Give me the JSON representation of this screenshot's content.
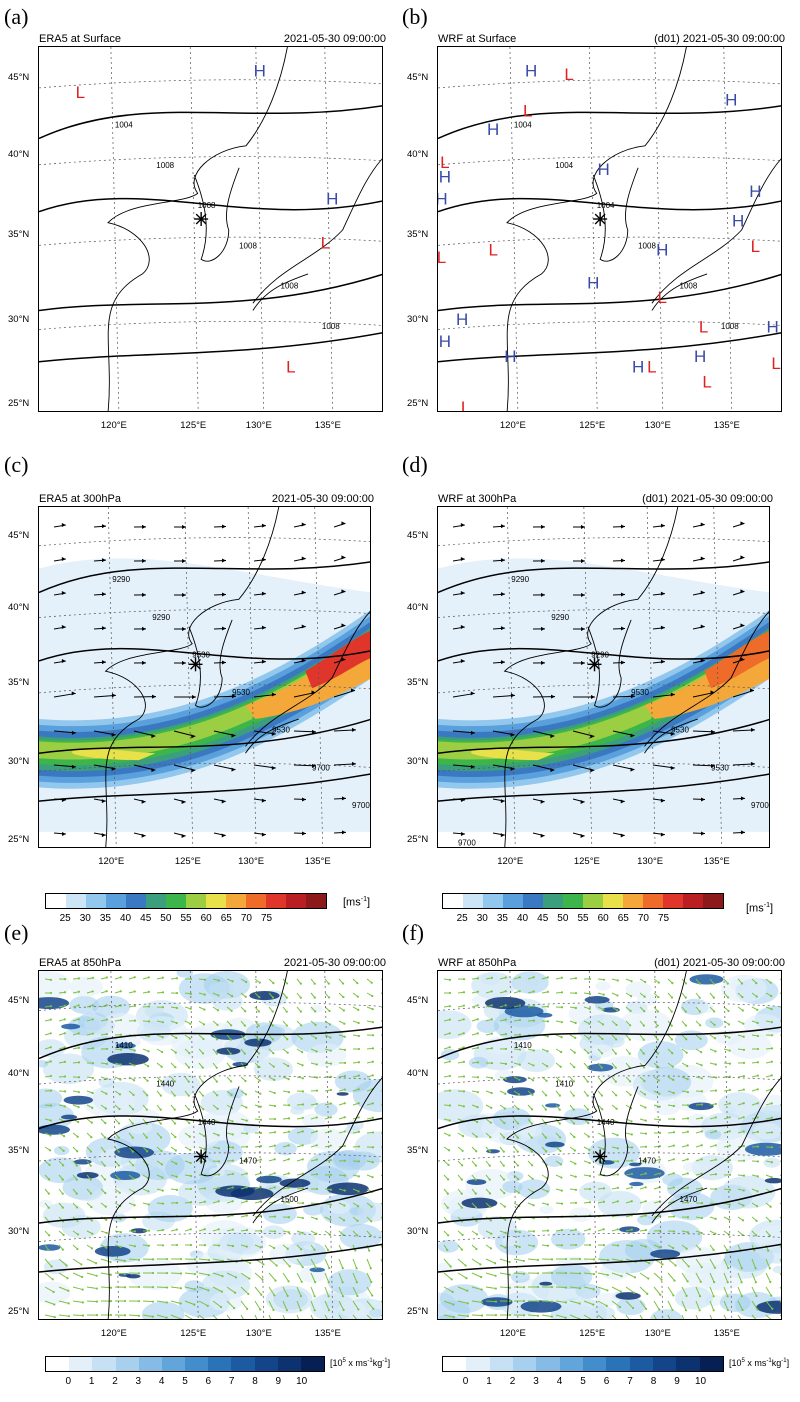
{
  "panels": [
    {
      "label": "(a)",
      "left_title": "ERA5 at Surface",
      "right_title": "2021-05-30 09:00:00",
      "contour_labels": [
        "1004",
        "1008",
        "1008",
        "1008",
        "1008",
        "1008"
      ],
      "H": [
        [
          "H",
          0.64,
          0.08
        ],
        [
          "H",
          0.85,
          0.43
        ]
      ],
      "L": [
        [
          "L",
          0.12,
          0.14
        ],
        [
          "L",
          0.83,
          0.55
        ],
        [
          "L",
          0.73,
          0.89
        ]
      ]
    },
    {
      "label": "(b)",
      "left_title": "WRF at Surface",
      "right_title": "(d01) 2021-05-30 09:00:00",
      "contour_labels": [
        "1004",
        "1004",
        "1004",
        "1008",
        "1008",
        "1008"
      ],
      "H": [
        [
          "H",
          0.27,
          0.08
        ],
        [
          "H",
          0.85,
          0.16
        ],
        [
          "H",
          0.16,
          0.24
        ],
        [
          "H",
          0.48,
          0.35
        ],
        [
          "H",
          0.02,
          0.37
        ],
        [
          "H",
          0.01,
          0.43
        ],
        [
          "H",
          0.92,
          0.41
        ],
        [
          "H",
          0.87,
          0.49
        ],
        [
          "H",
          0.65,
          0.57
        ],
        [
          "H",
          0.45,
          0.66
        ],
        [
          "H",
          0.07,
          0.76
        ],
        [
          "H",
          0.02,
          0.82
        ],
        [
          "H",
          0.21,
          0.86
        ],
        [
          "H",
          0.58,
          0.89
        ],
        [
          "H",
          0.76,
          0.86
        ],
        [
          "H",
          0.97,
          0.78
        ]
      ],
      "L": [
        [
          "L",
          0.38,
          0.09
        ],
        [
          "L",
          0.26,
          0.19
        ],
        [
          "L",
          0.02,
          0.33
        ],
        [
          "L",
          0.16,
          0.57
        ],
        [
          "L",
          0.92,
          0.56
        ],
        [
          "L",
          0.65,
          0.7
        ],
        [
          "L",
          0.77,
          0.78
        ],
        [
          "L",
          0.62,
          0.89
        ],
        [
          "L",
          0.78,
          0.93
        ],
        [
          "L",
          0.98,
          0.88
        ],
        [
          "L",
          0.08,
          1.0
        ],
        [
          "L",
          0.01,
          0.59
        ]
      ]
    },
    {
      "label": "(c)",
      "left_title": "ERA5 at 300hPa",
      "right_title": "2021-05-30 09:00:00",
      "contour_labels": [
        "9290",
        "9290",
        "9530",
        "9530",
        "9530",
        "9700",
        "9700"
      ]
    },
    {
      "label": "(d)",
      "left_title": "WRF at 300hPa",
      "right_title": "(d01) 2021-05-30 09:00:00",
      "contour_labels": [
        "9290",
        "9290",
        "9290",
        "9530",
        "9530",
        "9530",
        "9700",
        "9700"
      ]
    },
    {
      "label": "(e)",
      "left_title": "ERA5 at 850hPa",
      "right_title": "2021-05-30 09:00:00",
      "contour_labels": [
        "1410",
        "1440",
        "1440",
        "1470",
        "1500"
      ]
    },
    {
      "label": "(f)",
      "left_title": "WRF at 850hPa",
      "right_title": "(d01) 2021-05-30 09:00:00",
      "contour_labels": [
        "1410",
        "1410",
        "1440",
        "1470",
        "1470"
      ]
    }
  ],
  "lat_ticks": [
    "45°N",
    "40°N",
    "35°N",
    "30°N",
    "25°N"
  ],
  "lon_ticks": [
    "120°E",
    "125°E",
    "130°E",
    "135°E"
  ],
  "colorbars": {
    "wind": {
      "ticks": [
        "25",
        "30",
        "35",
        "40",
        "45",
        "50",
        "55",
        "60",
        "65",
        "70",
        "75"
      ],
      "unit": "[ms",
      "unit_sup": "-1",
      "unit_end": "]",
      "colors": [
        "#ffffff",
        "#cde6f7",
        "#92c7ee",
        "#5aa0dc",
        "#3a78c2",
        "#3b9e7c",
        "#3cb54a",
        "#9bce43",
        "#e8e14a",
        "#f4a83a",
        "#ef6b2a",
        "#e0352a",
        "#b81e22",
        "#8c1a1a"
      ]
    },
    "moist": {
      "ticks": [
        "0",
        "1",
        "2",
        "3",
        "4",
        "5",
        "6",
        "7",
        "8",
        "9",
        "10"
      ],
      "unit_pre": "[10",
      "unit_sup1": "5",
      "unit_mid": " x ms",
      "unit_sup2": "-1",
      "unit_mid2": "kg",
      "unit_sup3": "-1",
      "unit_end": "]",
      "colors": [
        "#ffffff",
        "#e3f0fa",
        "#c6e1f4",
        "#a6d0ee",
        "#84bce5",
        "#62a5da",
        "#438dcc",
        "#2b73b9",
        "#1c5aa2",
        "#13458a",
        "#0c3270",
        "#061f55"
      ]
    }
  },
  "colors": {
    "jet_low": "#cde6f7",
    "H": "#3a4aa8",
    "L": "#e02020",
    "vector": "#7cc242"
  }
}
